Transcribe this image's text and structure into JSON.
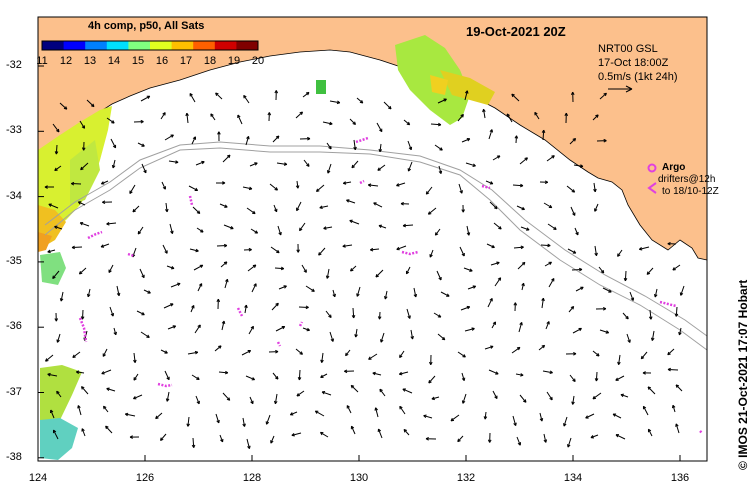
{
  "header": {
    "date": "19-Oct-2021 20Z",
    "legend_title": "4h comp, p50, All Sats"
  },
  "colorbar": {
    "ticks": [
      "11",
      "12",
      "13",
      "14",
      "15",
      "16",
      "17",
      "18",
      "19",
      "20"
    ],
    "colors": [
      "#00007f",
      "#0000ff",
      "#0080ff",
      "#00e0ff",
      "#80ff80",
      "#e0ff20",
      "#ffc000",
      "#ff6000",
      "#d00000",
      "#800000"
    ]
  },
  "model": {
    "name": "NRT00 GSL",
    "time": "17-Oct 18:00Z",
    "scale": "0.5m/s (1kt 24h)"
  },
  "argo": {
    "title": "Argo",
    "line1": "drifters@12h",
    "line2": "to 18/10-12Z"
  },
  "credit": "© IMOS 21-Oct-2021 17:07 Hobart",
  "axes": {
    "x_ticks": [
      "124",
      "126",
      "128",
      "130",
      "132",
      "134",
      "136"
    ],
    "y_ticks": [
      "-32",
      "-33",
      "-34",
      "-35",
      "-36",
      "-37",
      "-38"
    ]
  },
  "colors": {
    "land": "#fcc08c",
    "ocean": "#ffffff",
    "arrow": "#000000",
    "drifter": "#e040e0",
    "isobath": "#a0a0a0"
  }
}
